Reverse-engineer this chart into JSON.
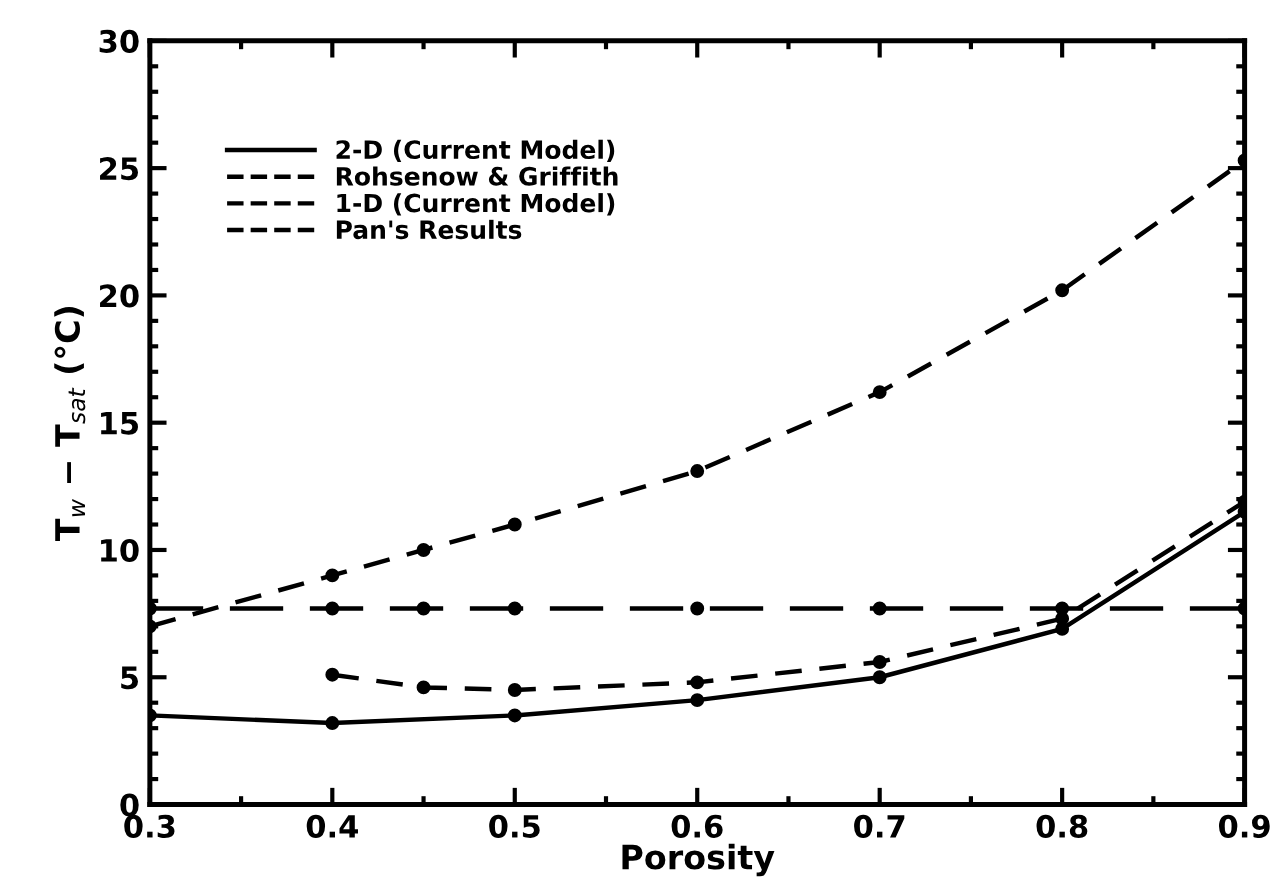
{
  "chart_data": {
    "type": "line",
    "xlabel": "Porosity",
    "ylabel": "T$_{w}$ − T$_{sat}$ (°C)",
    "xlim": [
      0.3,
      0.9
    ],
    "xticks": [
      0.3,
      0.4,
      0.5,
      0.6,
      0.7,
      0.8,
      0.9
    ],
    "ylim": [
      0,
      30
    ],
    "yticks": [
      0,
      5,
      10,
      15,
      20,
      25,
      30
    ],
    "legend": "top left",
    "marker": "circle",
    "grid": false,
    "series": [
      {
        "name": "2-D (Current Model)",
        "color": "#000000",
        "line_style": "solid",
        "x": [
          0.3,
          0.4,
          0.5,
          0.6,
          0.7,
          0.8,
          0.9
        ],
        "values": [
          3.5,
          3.2,
          3.5,
          4.1,
          5.0,
          6.9,
          11.5
        ]
      },
      {
        "name": "Rohsenow & Griffith",
        "color": "#000000",
        "line_style": "long_dashed",
        "x": [
          0.3,
          0.4,
          0.45,
          0.5,
          0.6,
          0.7,
          0.8,
          0.9
        ],
        "values": [
          7.7,
          7.7,
          7.7,
          7.7,
          7.7,
          7.7,
          7.7,
          7.7
        ]
      },
      {
        "name": "1-D (Current Model)",
        "color": "#000000",
        "line_style": "dashed",
        "x": [
          0.4,
          0.45,
          0.5,
          0.6,
          0.7,
          0.8,
          0.9
        ],
        "values": [
          5.1,
          4.6,
          4.5,
          4.8,
          5.6,
          7.3,
          11.9
        ]
      },
      {
        "name": "Pan's Results",
        "color": "#000000",
        "line_style": "dashed",
        "x": [
          0.3,
          0.4,
          0.45,
          0.5,
          0.6,
          0.7,
          0.8,
          0.9
        ],
        "values": [
          7.0,
          9.0,
          10.0,
          11.0,
          13.1,
          16.2,
          20.2,
          25.3
        ]
      }
    ]
  }
}
